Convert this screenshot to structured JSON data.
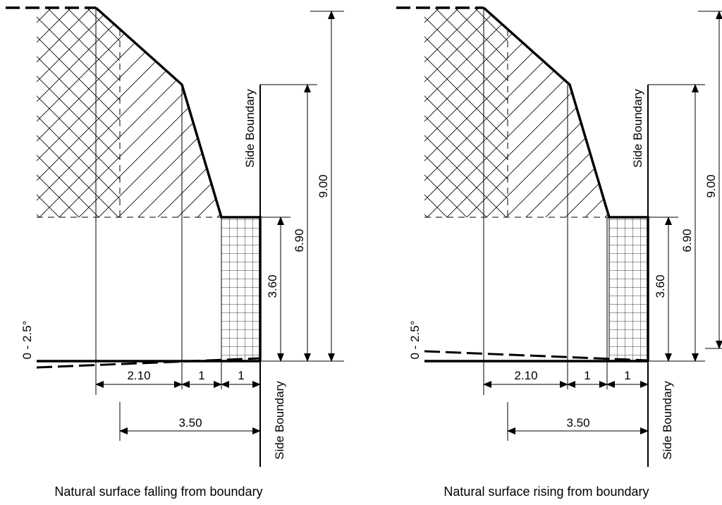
{
  "diagrams": [
    {
      "caption": "Natural surface falling from boundary",
      "side_boundary_label_upper": "Side Boundary",
      "side_boundary_label_lower": "Side Boundary",
      "slope_label": "0 - 2.5°",
      "dims": {
        "d210": "2.10",
        "d1a": "1",
        "d1b": "1",
        "d350": "3.50",
        "d360": "3.60",
        "d690": "6.90",
        "d900": "9.00"
      }
    },
    {
      "caption": "Natural surface rising from boundary",
      "side_boundary_label_upper": "Side Boundary",
      "side_boundary_label_lower": "Side Boundary",
      "slope_label": "0 - 2.5°",
      "dims": {
        "d210": "2.10",
        "d1a": "1",
        "d1b": "1",
        "d350": "3.50",
        "d360": "3.60",
        "d690": "6.90",
        "d900": "9.00"
      }
    }
  ]
}
